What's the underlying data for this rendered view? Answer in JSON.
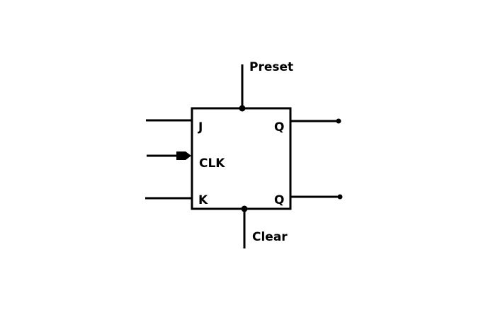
{
  "diagram": {
    "labels": {
      "preset": "Preset",
      "clear": "Clear",
      "j": "J",
      "k": "K",
      "clk": "CLK",
      "q": "Q",
      "q_bar": "Q"
    },
    "colors": {
      "stroke": "#000000",
      "background": "#ffffff"
    }
  }
}
